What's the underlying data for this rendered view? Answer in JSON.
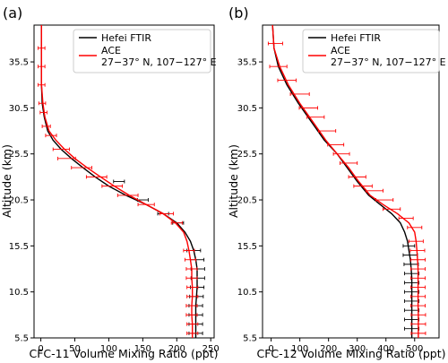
{
  "chart_data": [
    {
      "type": "line",
      "panel_label": "(a)",
      "xlabel": "CFC-11 Volume Mixing Ratio (ppt)",
      "ylabel": "Altitude (km)",
      "xlim": [
        -10,
        255
      ],
      "ylim": [
        5.5,
        39.5
      ],
      "xticks": [
        0,
        50,
        100,
        150,
        200,
        250
      ],
      "yticks": [
        5.5,
        10.5,
        15.5,
        20.5,
        25.5,
        30.5,
        35.5
      ],
      "xtick_labels": [
        "0",
        "50",
        "100",
        "150",
        "200",
        "250"
      ],
      "ytick_labels": [
        "5.5",
        "10.5",
        "15.5",
        "20.5",
        "25.5",
        "30.5",
        "35.5"
      ],
      "grid": false,
      "legend_position": "top-right",
      "series": [
        {
          "name": "Hefei FTIR",
          "color": "#000000",
          "points": [
            [
              1,
              39.5
            ],
            [
              1,
              36
            ],
            [
              1,
              33
            ],
            [
              2,
              31
            ],
            [
              5,
              29.5
            ],
            [
              10,
              28
            ],
            [
              18,
              27
            ],
            [
              30,
              26
            ],
            [
              45,
              25
            ],
            [
              62,
              24
            ],
            [
              80,
              23
            ],
            [
              100,
              22
            ],
            [
              125,
              21
            ],
            [
              155,
              20
            ],
            [
              180,
              19
            ],
            [
              200,
              18
            ],
            [
              212,
              17
            ],
            [
              220,
              16
            ],
            [
              225,
              15
            ],
            [
              228,
              14
            ],
            [
              230,
              13
            ],
            [
              230,
              12
            ],
            [
              230,
              11
            ],
            [
              229,
              10
            ],
            [
              228,
              9
            ],
            [
              228,
              8
            ],
            [
              228,
              7
            ],
            [
              228,
              6
            ],
            [
              228,
              5.5
            ]
          ],
          "error_bars": [
            [
              115,
              22.5,
              8
            ],
            [
              150,
              20.5,
              8
            ],
            [
              180,
              19,
              8
            ],
            [
              202,
              18,
              8
            ],
            [
              225,
              15,
              10
            ],
            [
              230,
              14,
              10
            ],
            [
              231,
              13,
              10
            ],
            [
              231,
              12,
              10
            ],
            [
              230,
              11,
              10
            ],
            [
              229,
              10,
              10
            ],
            [
              228,
              9,
              10
            ],
            [
              228,
              8,
              10
            ],
            [
              228,
              7,
              10
            ],
            [
              228,
              6,
              10
            ]
          ]
        },
        {
          "name": "ACE\n27−37° N, 107−127° E",
          "color": "#ff0000",
          "points": [
            [
              1,
              39.5
            ],
            [
              1,
              36
            ],
            [
              1,
              33
            ],
            [
              3,
              31
            ],
            [
              6,
              29.5
            ],
            [
              12,
              28
            ],
            [
              22,
              27
            ],
            [
              35,
              26
            ],
            [
              50,
              25
            ],
            [
              68,
              24
            ],
            [
              88,
              23
            ],
            [
              108,
              22
            ],
            [
              130,
              21
            ],
            [
              155,
              20
            ],
            [
              180,
              19
            ],
            [
              198,
              18
            ],
            [
              210,
              17
            ],
            [
              215,
              16
            ],
            [
              218,
              15
            ],
            [
              220,
              14
            ],
            [
              222,
              13
            ],
            [
              222,
              12
            ],
            [
              223,
              11
            ],
            [
              223,
              10
            ],
            [
              222,
              9
            ],
            [
              222,
              8
            ],
            [
              223,
              7
            ],
            [
              223,
              6
            ],
            [
              223,
              5.5
            ]
          ],
          "error_bars": [
            [
              1,
              37,
              5
            ],
            [
              1,
              35,
              5
            ],
            [
              1,
              33,
              5
            ],
            [
              2,
              31,
              5
            ],
            [
              4,
              30,
              5
            ],
            [
              8,
              28.5,
              6
            ],
            [
              15,
              27.5,
              8
            ],
            [
              30,
              26,
              12
            ],
            [
              38,
              25,
              13
            ],
            [
              60,
              24,
              15
            ],
            [
              82,
              23,
              15
            ],
            [
              105,
              22,
              15
            ],
            [
              128,
              21,
              15
            ],
            [
              155,
              20,
              12
            ],
            [
              185,
              19,
              10
            ],
            [
              200,
              18,
              8
            ],
            [
              218,
              15,
              8
            ],
            [
              220,
              14,
              8
            ],
            [
              222,
              13,
              8
            ],
            [
              222,
              12,
              8
            ],
            [
              223,
              11,
              8
            ],
            [
              223,
              10,
              8
            ],
            [
              222,
              9,
              8
            ],
            [
              222,
              8,
              8
            ],
            [
              223,
              7,
              8
            ],
            [
              223,
              6,
              8
            ]
          ]
        }
      ]
    },
    {
      "type": "line",
      "panel_label": "(b)",
      "xlabel": "CFC-12 Volume Mixing Ratio (ppt)",
      "ylabel": "Altitude (km)",
      "xlim": [
        -30,
        585
      ],
      "ylim": [
        5.5,
        39.5
      ],
      "xticks": [
        0,
        100,
        200,
        300,
        400,
        500
      ],
      "yticks": [
        5.5,
        10.5,
        15.5,
        20.5,
        25.5,
        30.5,
        35.5
      ],
      "xtick_labels": [
        "0",
        "100",
        "200",
        "300",
        "400",
        "500"
      ],
      "ytick_labels": [
        "5.5",
        "10.5",
        "15.5",
        "20.5",
        "25.5",
        "30.5",
        "35.5"
      ],
      "grid": false,
      "legend_position": "top-right",
      "series": [
        {
          "name": "Hefei FTIR",
          "color": "#000000",
          "points": [
            [
              5,
              39.5
            ],
            [
              10,
              37
            ],
            [
              25,
              35
            ],
            [
              55,
              33
            ],
            [
              95,
              31
            ],
            [
              140,
              29
            ],
            [
              185,
              27
            ],
            [
              230,
              25.5
            ],
            [
              265,
              24
            ],
            [
              300,
              22.5
            ],
            [
              340,
              21
            ],
            [
              380,
              20
            ],
            [
              420,
              19
            ],
            [
              450,
              18
            ],
            [
              465,
              17
            ],
            [
              475,
              16
            ],
            [
              480,
              15
            ],
            [
              485,
              14
            ],
            [
              488,
              13
            ],
            [
              490,
              12
            ],
            [
              490,
              11
            ],
            [
              490,
              10
            ],
            [
              490,
              9
            ],
            [
              490,
              8
            ],
            [
              490,
              7
            ],
            [
              490,
              6
            ],
            [
              490,
              5.5
            ]
          ],
          "error_bars": [
            [
              480,
              15.5,
              20
            ],
            [
              485,
              14.5,
              25
            ],
            [
              488,
              13.5,
              25
            ],
            [
              490,
              12.5,
              25
            ],
            [
              490,
              11.5,
              25
            ],
            [
              490,
              10.5,
              25
            ],
            [
              490,
              9.5,
              25
            ],
            [
              490,
              8.5,
              25
            ],
            [
              490,
              7.5,
              25
            ],
            [
              490,
              6.5,
              25
            ]
          ]
        },
        {
          "name": "ACE\n27−37° N, 107−127° E",
          "color": "#ff0000",
          "points": [
            [
              5,
              39.5
            ],
            [
              10,
              37
            ],
            [
              30,
              35
            ],
            [
              60,
              33
            ],
            [
              100,
              31
            ],
            [
              145,
              29
            ],
            [
              190,
              27
            ],
            [
              230,
              25.5
            ],
            [
              270,
              24
            ],
            [
              305,
              22.5
            ],
            [
              345,
              21
            ],
            [
              390,
              20
            ],
            [
              440,
              19
            ],
            [
              480,
              18
            ],
            [
              500,
              17
            ],
            [
              505,
              16
            ],
            [
              508,
              15
            ],
            [
              510,
              14
            ],
            [
              512,
              13
            ],
            [
              512,
              12
            ],
            [
              512,
              11
            ],
            [
              512,
              10
            ],
            [
              512,
              9
            ],
            [
              513,
              8
            ],
            [
              513,
              7
            ],
            [
              513,
              6
            ],
            [
              513,
              5.5
            ]
          ],
          "error_bars": [
            [
              15,
              37.5,
              25
            ],
            [
              25,
              35,
              30
            ],
            [
              55,
              33.5,
              32
            ],
            [
              100,
              32,
              33
            ],
            [
              130,
              30.5,
              32
            ],
            [
              155,
              29.5,
              30
            ],
            [
              195,
              28,
              30
            ],
            [
              225,
              26.5,
              28
            ],
            [
              245,
              25.5,
              28
            ],
            [
              270,
              24.5,
              30
            ],
            [
              300,
              23,
              30
            ],
            [
              320,
              22,
              32
            ],
            [
              360,
              21.5,
              30
            ],
            [
              395,
              20.5,
              30
            ],
            [
              420,
              19.5,
              30
            ],
            [
              470,
              18.5,
              25
            ],
            [
              500,
              17.5,
              25
            ],
            [
              505,
              16,
              25
            ],
            [
              510,
              15,
              25
            ],
            [
              512,
              14,
              25
            ],
            [
              512,
              13,
              25
            ],
            [
              512,
              12,
              25
            ],
            [
              512,
              11,
              25
            ],
            [
              512,
              10,
              25
            ],
            [
              512,
              9,
              25
            ],
            [
              513,
              8,
              25
            ],
            [
              513,
              7,
              25
            ],
            [
              513,
              6,
              25
            ]
          ]
        }
      ]
    }
  ]
}
